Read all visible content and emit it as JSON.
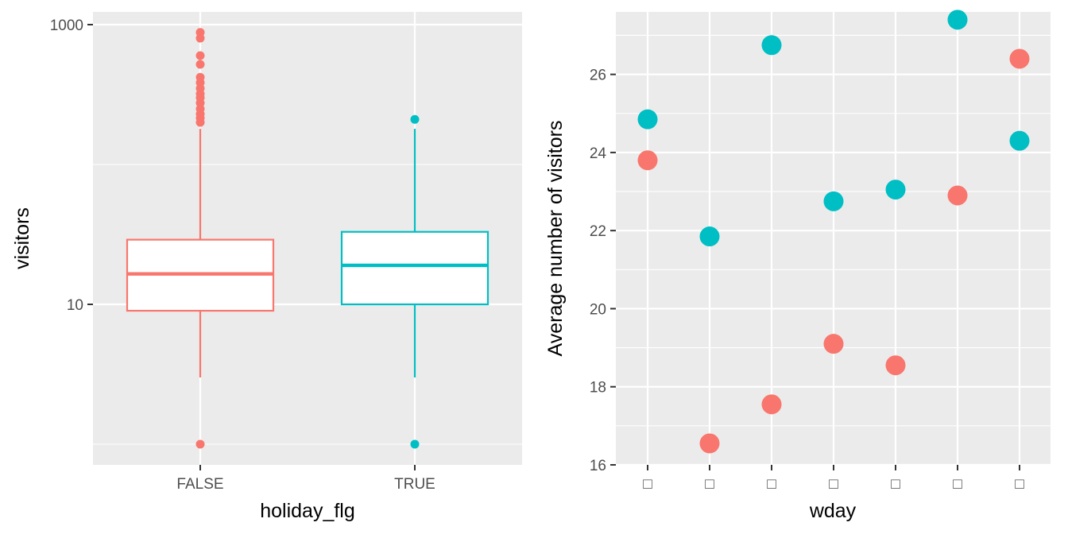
{
  "chart_data": [
    {
      "type": "boxplot",
      "xlabel": "holiday_flg",
      "ylabel": "visitors",
      "y_scale": "log10",
      "ylim": [
        1,
        1000
      ],
      "y_ticks": [
        {
          "value": 10,
          "label": "10"
        },
        {
          "value": 1000,
          "label": "1000"
        }
      ],
      "categories": [
        "FALSE",
        "TRUE"
      ],
      "colors": [
        "#f8766d",
        "#00bfc4"
      ],
      "grid": true,
      "legend": "none",
      "boxes": [
        {
          "category": "FALSE",
          "min": 3.0,
          "q1": 9.0,
          "median": 16.5,
          "q3": 29.0,
          "whisker_high": 180,
          "outliers": [
            1,
            200,
            215,
            230,
            250,
            275,
            300,
            320,
            350,
            385,
            420,
            520,
            600,
            800,
            880
          ]
        },
        {
          "category": "TRUE",
          "min": 3.0,
          "q1": 10.0,
          "median": 19.0,
          "q3": 33.0,
          "whisker_high": 180,
          "outliers": [
            1,
            210
          ]
        }
      ]
    },
    {
      "type": "scatter",
      "xlabel": "wday",
      "ylabel": "Average number of visitors",
      "ylim": [
        16,
        27.6
      ],
      "y_ticks": [
        16,
        18,
        20,
        22,
        24,
        26
      ],
      "x_tick_labels": [
        "□",
        "□",
        "□",
        "□",
        "□",
        "□",
        "□"
      ],
      "grid": true,
      "legend": "none",
      "series": [
        {
          "color": "#f8766d",
          "values": [
            23.8,
            16.55,
            17.55,
            19.1,
            18.55,
            22.9,
            26.4
          ]
        },
        {
          "color": "#00bfc4",
          "values": [
            24.85,
            21.85,
            26.75,
            22.75,
            23.05,
            27.4,
            24.3
          ]
        }
      ]
    }
  ]
}
